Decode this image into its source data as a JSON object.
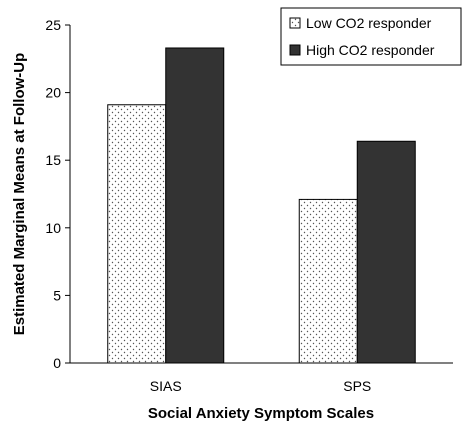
{
  "chart_data": {
    "type": "bar",
    "title": "",
    "xlabel": "Social Anxiety Symptom Scales",
    "ylabel": "Estimated Marginal Means at Follow-Up",
    "categories": [
      "SIAS",
      "SPS"
    ],
    "ylim": [
      0,
      25
    ],
    "yticks": [
      "0",
      "5",
      "10",
      "15",
      "20",
      "25"
    ],
    "ytick_values": [
      0,
      5,
      10,
      15,
      20,
      25
    ],
    "grid": false,
    "legend_position": "top-right",
    "series": [
      {
        "name": "Low CO2 responder",
        "values": [
          19.1,
          12.1
        ],
        "fill": "dotted",
        "color": "#ffffff"
      },
      {
        "name": "High CO2 responder",
        "values": [
          23.3,
          16.4
        ],
        "fill": "solid",
        "color": "#333333"
      }
    ]
  }
}
